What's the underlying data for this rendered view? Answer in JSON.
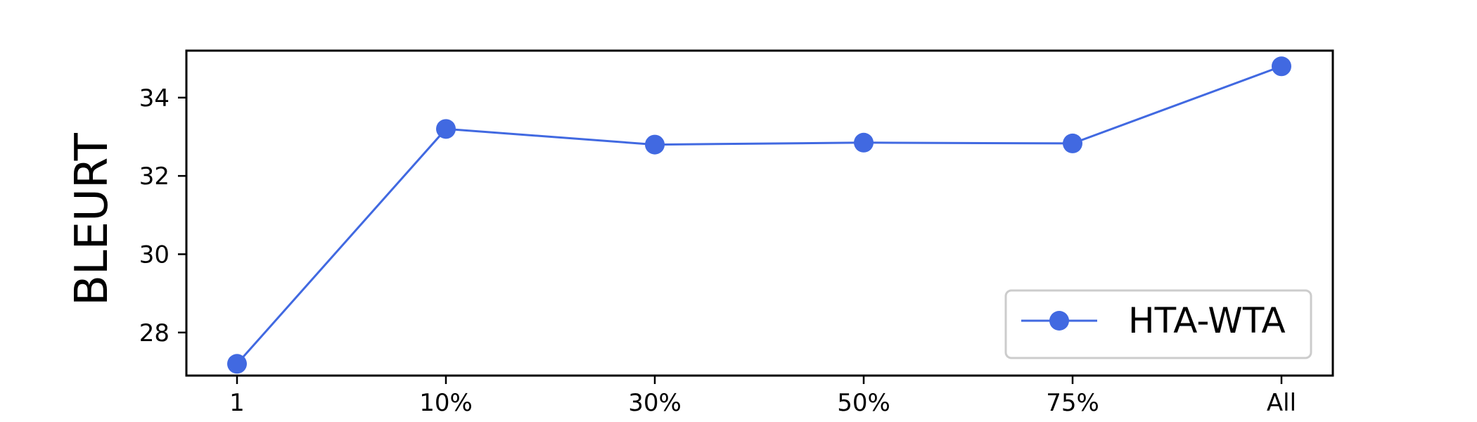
{
  "chart_data": {
    "type": "line",
    "categories": [
      "1",
      "10%",
      "30%",
      "50%",
      "75%",
      "All"
    ],
    "series": [
      {
        "name": "HTA-WTA",
        "values": [
          27.2,
          33.2,
          32.8,
          32.85,
          32.83,
          34.8
        ],
        "color": "#4169E1"
      }
    ],
    "ylabel": "BLEURT",
    "xlabel": "",
    "ylim": [
      26.9,
      35.2
    ],
    "yticks": [
      "28",
      "30",
      "32",
      "34"
    ],
    "ytick_values": [
      28,
      30,
      32,
      34
    ],
    "legend_position": "lower-right",
    "grid": false
  }
}
